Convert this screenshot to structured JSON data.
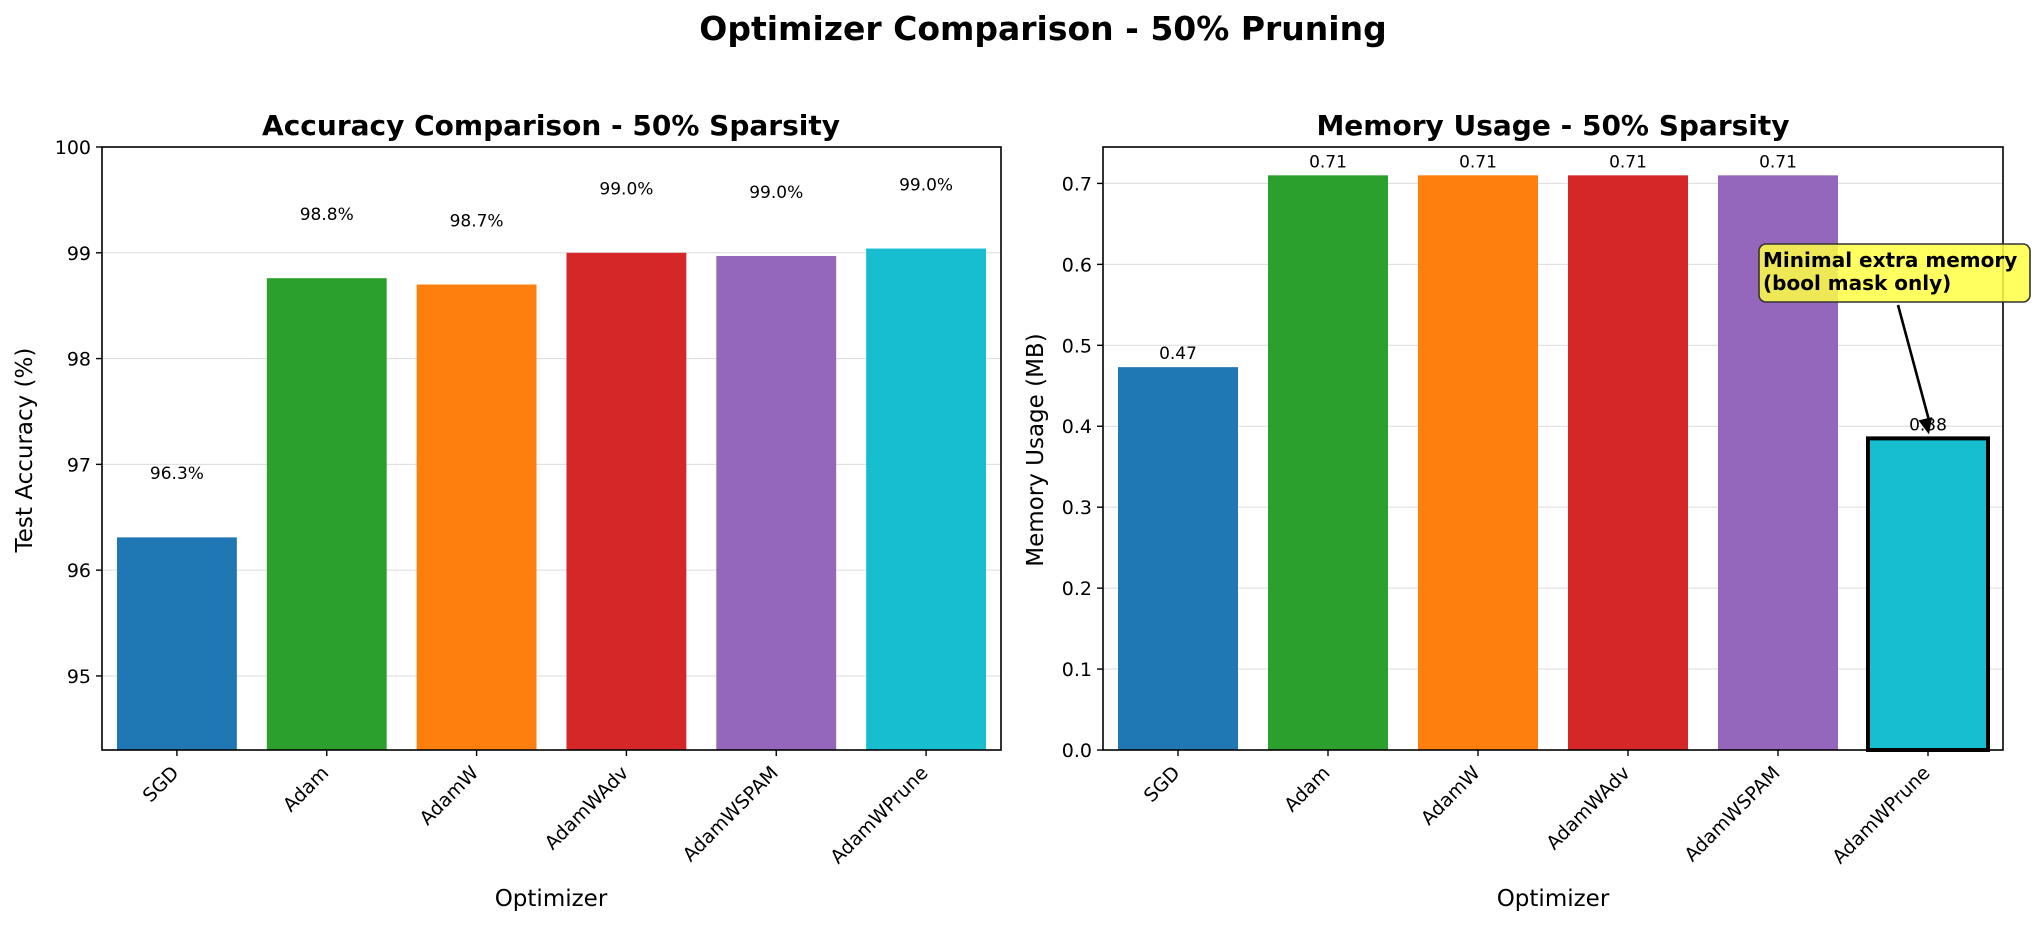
{
  "figure": {
    "suptitle": "Optimizer Comparison - 50% Pruning"
  },
  "chart_data": [
    {
      "type": "bar",
      "title": "Accuracy Comparison - 50% Sparsity",
      "xlabel": "Optimizer",
      "ylabel": "Test Accuracy (%)",
      "categories": [
        "SGD",
        "Adam",
        "AdamW",
        "AdamWAdv",
        "AdamWSPAM",
        "AdamWPrune"
      ],
      "values": [
        96.31,
        98.76,
        98.7,
        99.0,
        98.97,
        99.04
      ],
      "data_labels": [
        "96.3%",
        "98.8%",
        "98.7%",
        "99.0%",
        "99.0%",
        "99.0%"
      ],
      "colors": [
        "#1f77b4",
        "#2ca02c",
        "#ff7f0e",
        "#d62728",
        "#9467bd",
        "#17becf"
      ],
      "ylim": [
        94.3,
        100
      ],
      "yticks": [
        95,
        96,
        97,
        98,
        99,
        100
      ],
      "ytick_labels": [
        "95",
        "96",
        "97",
        "98",
        "99",
        "100"
      ],
      "grid": "y",
      "legend": "none"
    },
    {
      "type": "bar",
      "title": "Memory Usage - 50% Sparsity",
      "xlabel": "Optimizer",
      "ylabel": "Memory Usage (MB)",
      "categories": [
        "SGD",
        "Adam",
        "AdamW",
        "AdamWAdv",
        "AdamWSPAM",
        "AdamWPrune"
      ],
      "values": [
        0.473,
        0.71,
        0.71,
        0.71,
        0.71,
        0.385
      ],
      "data_labels": [
        "0.47",
        "0.71",
        "0.71",
        "0.71",
        "0.71",
        "0.38"
      ],
      "colors": [
        "#1f77b4",
        "#2ca02c",
        "#ff7f0e",
        "#d62728",
        "#9467bd",
        "#17becf"
      ],
      "highlight_index": 5,
      "ylim": [
        0,
        0.745
      ],
      "yticks": [
        0,
        0.1,
        0.2,
        0.3,
        0.4,
        0.5,
        0.6,
        0.7
      ],
      "ytick_labels": [
        "0.0",
        "0.1",
        "0.2",
        "0.3",
        "0.4",
        "0.5",
        "0.6",
        "0.7"
      ],
      "grid": "y",
      "legend": "none",
      "annotation": {
        "lines": [
          "Minimal extra memory",
          "(bool mask only)"
        ],
        "target_category": "AdamWPrune",
        "target_value": 0.39,
        "box_color": "#ffff44"
      }
    }
  ]
}
